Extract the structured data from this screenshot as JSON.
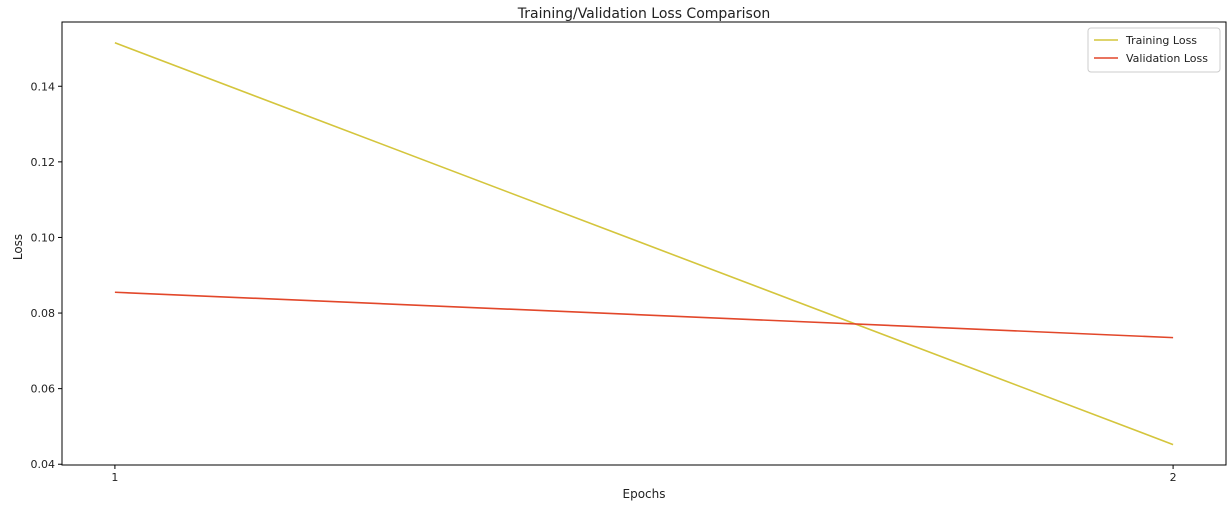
{
  "chart_data": {
    "type": "line",
    "title": "Training/Validation Loss Comparison",
    "xlabel": "Epochs",
    "ylabel": "Loss",
    "x": [
      1,
      2
    ],
    "x_ticks": [
      "1",
      "2"
    ],
    "y_ticks": [
      "0.04",
      "0.06",
      "0.08",
      "0.10",
      "0.12",
      "0.14"
    ],
    "xlim": [
      0.95,
      2.05
    ],
    "ylim": [
      0.0398,
      0.157
    ],
    "grid": false,
    "legend_position": "top-right",
    "series": [
      {
        "name": "Training Loss",
        "values": [
          0.1515,
          0.0452
        ],
        "color": "#d4c53c"
      },
      {
        "name": "Validation Loss",
        "values": [
          0.0855,
          0.0735
        ],
        "color": "#e2472a"
      }
    ]
  }
}
